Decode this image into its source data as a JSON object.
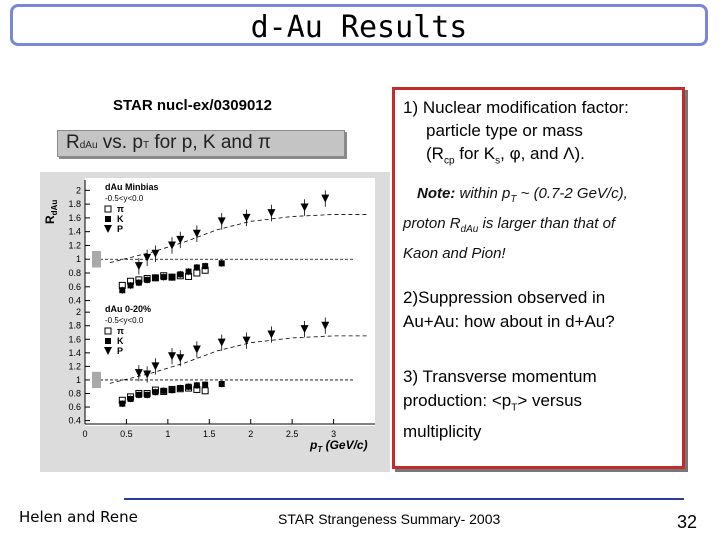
{
  "header": {
    "title": "d-Au Results"
  },
  "left": {
    "reference": "STAR nucl-ex/0309012",
    "label": {
      "r": "R",
      "r_sub": "dAu",
      "mid": " vs. p",
      "p_sub": "T",
      "rest": " for p, K and π"
    }
  },
  "right": {
    "point1_line1": "1) Nuclear modification factor:",
    "point1_line2": "particle type or mass",
    "point1_line3_a": "(R",
    "point1_line3_sub": "cp",
    "point1_line3_b": "  for K",
    "point1_line3_sub2": "s",
    "point1_line3_c": ",  φ,  and Λ).",
    "note_label": "Note:",
    "note_line1_a": " within p",
    "note_line1_sub": "T",
    "note_line1_b": " ~ (0.7-2 GeV/c),",
    "note_line2_a": "proton R",
    "note_line2_sub": "dAu",
    "note_line2_b": " is larger than that of",
    "note_line3": "Kaon and Pion!",
    "point2_line1": "2)Suppression observed in",
    "point2_line2": "Au+Au: how about in d+Au?",
    "point3_line1": "3) Transverse momentum",
    "point3_line2_a": "production: <p",
    "point3_line2_sub": "T",
    "point3_line2_b": "> versus",
    "point3_line3": "multiplicity"
  },
  "footer": {
    "left": "Helen and Rene",
    "center": "STAR Strangeness Summary- 2003",
    "page": "32"
  },
  "colors": {
    "accent": "#c62b2b",
    "title_border": "#7a86d6",
    "footer_line": "#2b3aa0"
  },
  "chart_data": [
    {
      "type": "scatter",
      "ylabel": "R",
      "ylabel_sub": "dAu",
      "yticks": [
        0.4,
        0.6,
        0.8,
        1,
        1.2,
        1.4,
        1.6,
        1.8,
        2
      ],
      "ylim": [
        0.35,
        2.15
      ],
      "xlim": [
        0,
        3.5
      ],
      "legend_title": "dAu Minbias",
      "legend_subtitle": "-0.5<y<0.0",
      "legend_entries": [
        "π",
        "K",
        "P"
      ],
      "series": [
        {
          "name": "π",
          "marker": "open-square",
          "points": [
            [
              0.45,
              0.62
            ],
            [
              0.55,
              0.68
            ],
            [
              0.65,
              0.7
            ],
            [
              0.75,
              0.72
            ],
            [
              0.85,
              0.73
            ],
            [
              0.95,
              0.76
            ],
            [
              1.05,
              0.74
            ],
            [
              1.15,
              0.76
            ],
            [
              1.25,
              0.75
            ],
            [
              1.35,
              0.8
            ],
            [
              1.45,
              0.84
            ]
          ]
        },
        {
          "name": "K",
          "marker": "filled-square",
          "points": [
            [
              0.45,
              0.55
            ],
            [
              0.55,
              0.62
            ],
            [
              0.65,
              0.66
            ],
            [
              0.75,
              0.7
            ],
            [
              0.85,
              0.73
            ],
            [
              0.95,
              0.74
            ],
            [
              1.05,
              0.74
            ],
            [
              1.15,
              0.78
            ],
            [
              1.25,
              0.82
            ],
            [
              1.35,
              0.88
            ],
            [
              1.45,
              0.9
            ],
            [
              1.65,
              0.94
            ]
          ]
        },
        {
          "name": "P",
          "marker": "filled-triangle-down",
          "points": [
            [
              0.65,
              0.9
            ],
            [
              0.75,
              1.02
            ],
            [
              0.85,
              1.08
            ],
            [
              1.05,
              1.2
            ],
            [
              1.15,
              1.28
            ],
            [
              1.35,
              1.37
            ],
            [
              1.65,
              1.55
            ],
            [
              1.95,
              1.6
            ],
            [
              2.25,
              1.67
            ],
            [
              2.65,
              1.75
            ],
            [
              2.9,
              1.88
            ]
          ]
        }
      ]
    },
    {
      "type": "scatter",
      "ylabel": "",
      "yticks": [
        0.4,
        0.6,
        0.8,
        1,
        1.2,
        1.4,
        1.6,
        1.8,
        2
      ],
      "ylim": [
        0.35,
        2.15
      ],
      "xlim": [
        0,
        3.5
      ],
      "xticks": [
        0,
        0.5,
        1,
        1.5,
        2,
        2.5,
        3
      ],
      "xlabel": "p",
      "xlabel_sub": "T",
      "xlabel_unit": " (GeV/c)",
      "legend_title": "dAu 0-20%",
      "legend_subtitle": "-0.5<y<0.0",
      "legend_entries": [
        "π",
        "K",
        "P"
      ],
      "series": [
        {
          "name": "π",
          "marker": "open-square",
          "points": [
            [
              0.45,
              0.7
            ],
            [
              0.55,
              0.75
            ],
            [
              0.65,
              0.8
            ],
            [
              0.75,
              0.8
            ],
            [
              0.85,
              0.85
            ],
            [
              0.95,
              0.83
            ],
            [
              1.05,
              0.86
            ],
            [
              1.15,
              0.87
            ],
            [
              1.25,
              0.88
            ],
            [
              1.35,
              0.86
            ],
            [
              1.45,
              0.84
            ]
          ]
        },
        {
          "name": "K",
          "marker": "filled-square",
          "points": [
            [
              0.45,
              0.65
            ],
            [
              0.55,
              0.72
            ],
            [
              0.65,
              0.78
            ],
            [
              0.75,
              0.78
            ],
            [
              0.85,
              0.82
            ],
            [
              0.95,
              0.84
            ],
            [
              1.05,
              0.85
            ],
            [
              1.15,
              0.88
            ],
            [
              1.25,
              0.9
            ],
            [
              1.35,
              0.92
            ],
            [
              1.45,
              0.93
            ],
            [
              1.65,
              0.94
            ]
          ]
        },
        {
          "name": "P",
          "marker": "filled-triangle-down",
          "points": [
            [
              0.65,
              1.1
            ],
            [
              0.75,
              1.08
            ],
            [
              0.85,
              1.2
            ],
            [
              1.05,
              1.35
            ],
            [
              1.15,
              1.32
            ],
            [
              1.35,
              1.45
            ],
            [
              1.65,
              1.55
            ],
            [
              1.95,
              1.58
            ],
            [
              2.25,
              1.67
            ],
            [
              2.65,
              1.75
            ],
            [
              2.9,
              1.8
            ]
          ]
        }
      ]
    }
  ]
}
